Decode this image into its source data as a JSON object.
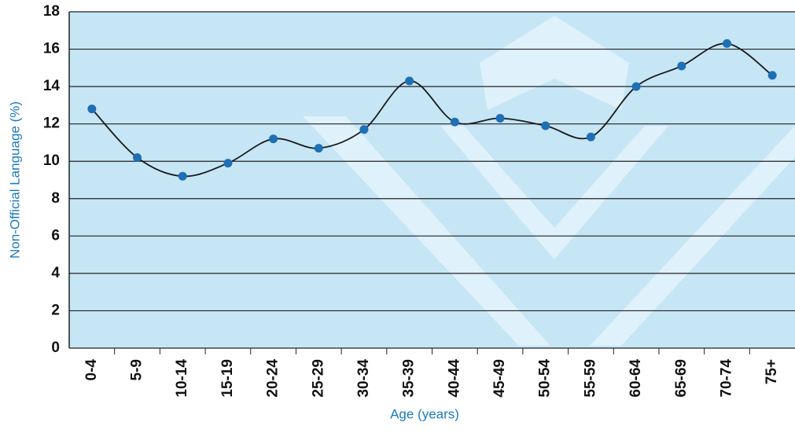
{
  "chart_data": {
    "type": "line",
    "x_label": "Age (years)",
    "y_label": "Non-Official Language (%)",
    "categories": [
      "0-4",
      "5-9",
      "10-14",
      "15-19",
      "20-24",
      "25-29",
      "30-34",
      "35-39",
      "40-44",
      "45-49",
      "50-54",
      "55-59",
      "60-64",
      "65-69",
      "70-74",
      "75+"
    ],
    "values": [
      12.8,
      10.2,
      9.2,
      9.9,
      11.2,
      10.7,
      11.7,
      14.3,
      12.1,
      12.3,
      11.9,
      11.3,
      14.0,
      15.1,
      16.3,
      14.6
    ],
    "color": "#1f6fb5",
    "line_color": "#1a1a1a",
    "ylim": [
      0,
      18
    ],
    "yticks": [
      0,
      2,
      4,
      6,
      8,
      10,
      12,
      14,
      16,
      18
    ],
    "grid": true,
    "smooth": true
  }
}
